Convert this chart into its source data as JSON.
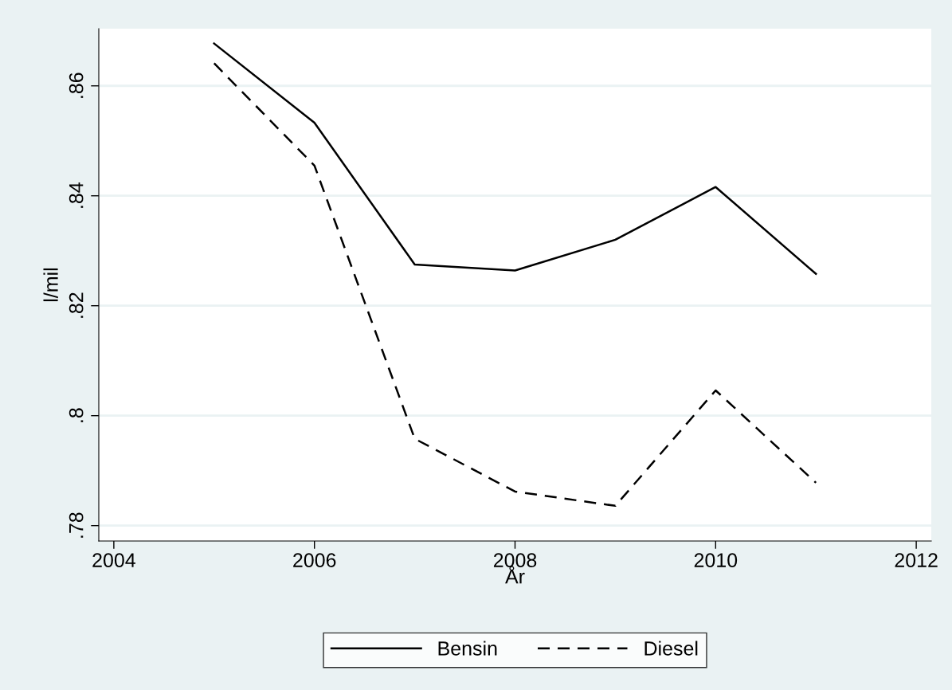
{
  "chart_data": {
    "type": "line",
    "xlabel": "År",
    "ylabel": "l/mil",
    "x": [
      2005,
      2006,
      2007,
      2008,
      2009,
      2010,
      2011
    ],
    "series": [
      {
        "name": "Bensin",
        "color": "#000000",
        "line_style": "solid",
        "values": [
          0.8677,
          0.8533,
          0.8275,
          0.8264,
          0.832,
          0.8416,
          0.8258
        ]
      },
      {
        "name": "Diesel",
        "color": "#000000",
        "line_style": "dashed",
        "values": [
          0.8641,
          0.8455,
          0.7958,
          0.7862,
          0.7836,
          0.8046,
          0.7878
        ]
      }
    ],
    "xlim": [
      2003.85,
      2012.15
    ],
    "xticks": [
      2004,
      2006,
      2008,
      2010,
      2012
    ],
    "ylim": [
      0.7772,
      0.8704
    ],
    "yticks": [
      {
        "value": 0.78,
        "label": ".78"
      },
      {
        "value": 0.8,
        "label": ".8"
      },
      {
        "value": 0.82,
        "label": ".82"
      },
      {
        "value": 0.84,
        "label": ".84"
      },
      {
        "value": 0.86,
        "label": ".86"
      }
    ],
    "grid": "y",
    "legend": "bottom",
    "marker": "none"
  }
}
